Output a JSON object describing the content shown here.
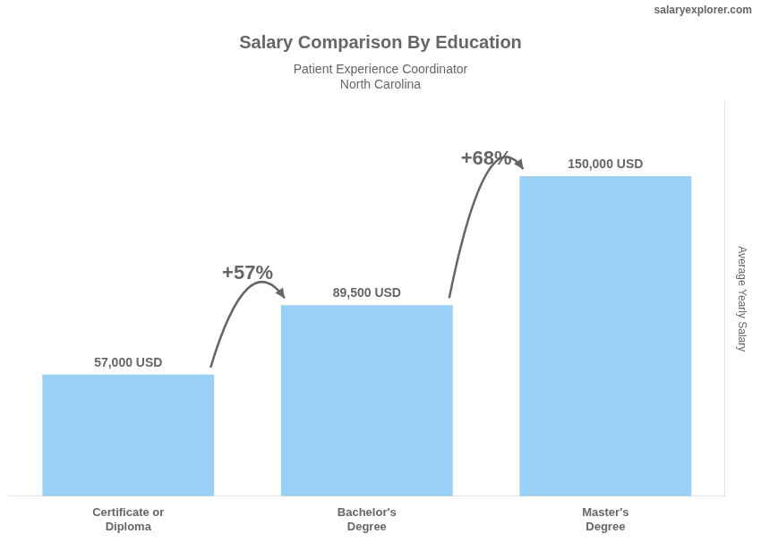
{
  "chart_data": {
    "type": "bar",
    "title": "Salary Comparison By Education",
    "subtitle": [
      "Patient Experience Coordinator",
      "North Carolina"
    ],
    "ylabel": "Average Yearly Salary",
    "categories": [
      "Certificate or\nDiploma",
      "Bachelor's\nDegree",
      "Master's\nDegree"
    ],
    "values": [
      57000,
      89500,
      150000
    ],
    "value_labels": [
      "57,000 USD",
      "89,500 USD",
      "150,000 USD"
    ],
    "data_labels": true,
    "annotations": [
      {
        "text": "salaryexplorer.com"
      },
      {
        "text": "+57%",
        "from": 0,
        "to": 1
      },
      {
        "text": "+68%",
        "from": 1,
        "to": 2
      }
    ],
    "ylim": [
      0,
      185000
    ],
    "tick_labels": "x",
    "grid": false
  }
}
